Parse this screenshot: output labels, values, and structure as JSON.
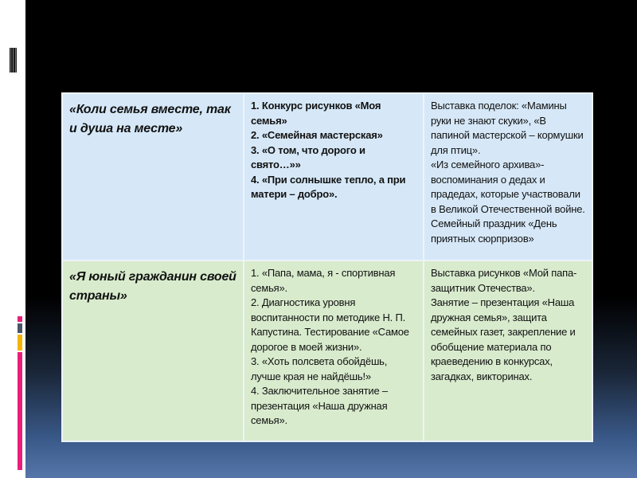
{
  "colors": {
    "row1_bg": "#d6e8f8",
    "row2_bg": "#d8ebcd",
    "accent_pink": "#e91e7a",
    "accent_gray": "#4a5568",
    "accent_orange": "#f5b400"
  },
  "table": {
    "rows": [
      {
        "theme": "«Коли семья вместе, так и душа на месте»",
        "activities": [
          "1. Конкурс рисунков «Моя семья»",
          "2. «Семейная мастерская»",
          "3. «О том, что дорого и свято…»»",
          "4. «При солнышке тепло, а при матери – добро»."
        ],
        "events": [
          "Выставка поделок: «Мамины руки не знают скуки», «В папиной мастерской – кормушки для птиц».",
          "«Из семейного архива»- воспоминания о дедах и прадедах, которые участвовали в Великой Отечественной войне.",
          "Семейный праздник «День приятных сюрпризов»"
        ]
      },
      {
        "theme": "«Я юный гражданин своей страны»",
        "activities": [
          "1. «Папа, мама, я - спортивная семья».",
          "2. Диагностика уровня воспитанности по методике Н. П. Капустина. Тестирование «Самое дорогое в моей жизни».",
          "3. «Хоть полсвета обойдёшь, лучше края не найдёшь!»",
          "4. Заключительное занятие – презентация «Наша дружная семья»."
        ],
        "events": [
          "Выставка рисунков «Мой папа- защитник Отечества».",
          "Занятие – презентация «Наша дружная семья», защита семейных газет, закрепление и обобщение материала по краеведению в конкурсах, загадках, викторинах."
        ]
      }
    ]
  }
}
